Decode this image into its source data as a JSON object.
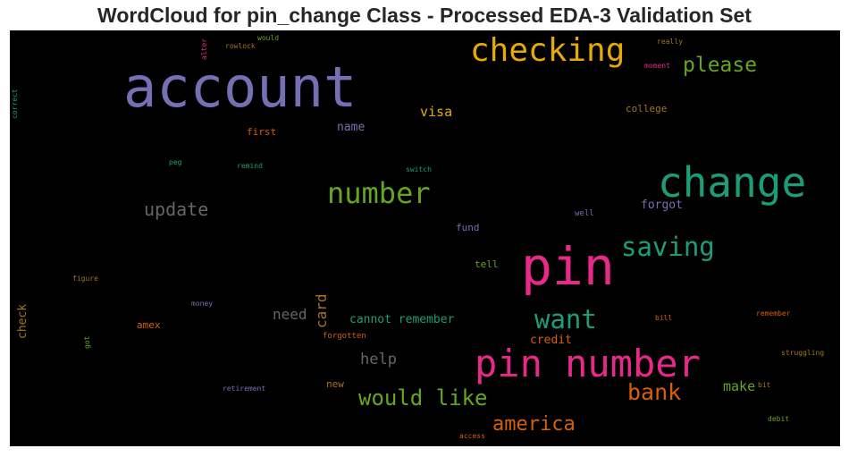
{
  "title": "WordCloud for pin_change Class - Processed EDA-3 Validation Set",
  "colors": {
    "purple": "#7570b3",
    "orange": "#d95f02",
    "teal": "#1b9e77",
    "pink": "#e7298a",
    "green": "#66a61e",
    "gold": "#e6ab02",
    "brown": "#a6761d",
    "gray": "#666666",
    "background": "#000000"
  },
  "words": {
    "account": "account",
    "checking": "checking",
    "please": "please",
    "change": "change",
    "number": "number",
    "visa": "visa",
    "name": "name",
    "first": "first",
    "college": "college",
    "update": "update",
    "saving": "saving",
    "forgot": "forgot",
    "fund": "fund",
    "well": "well",
    "pin": "pin",
    "tell": "tell",
    "want": "want",
    "need": "need",
    "card": "card",
    "cannot_remember": "cannot remember",
    "check": "check",
    "amex": "amex",
    "money": "money",
    "credit": "credit",
    "forgotten": "forgotten",
    "help": "help",
    "pin_number": "pin number",
    "would_like": "would like",
    "bank": "bank",
    "make": "make",
    "new": "new",
    "america": "america",
    "access": "access",
    "retirement": "retirement",
    "got": "got",
    "figure": "figure",
    "peg": "peg",
    "remind": "remind",
    "switch": "switch",
    "alter": "alter",
    "rowlock": "rowlock",
    "would": "would",
    "really": "really",
    "moment": "moment",
    "correct": "correct",
    "bill": "bill",
    "remember": "remember",
    "struggling": "struggling",
    "bit": "bit",
    "debit": "debit"
  }
}
